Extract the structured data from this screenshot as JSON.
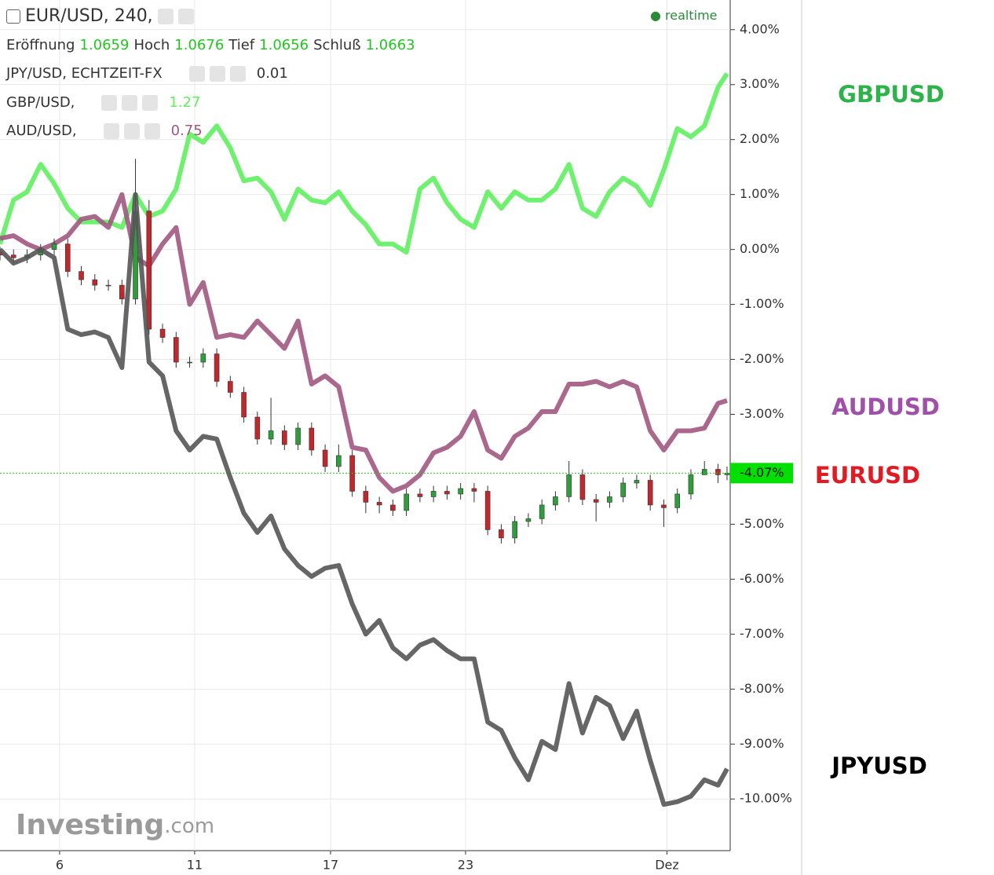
{
  "header": {
    "main": "EUR/USD, 240,",
    "open_label": "Eröffnung",
    "open": 1.0659,
    "high_label": "Hoch",
    "high": 1.0676,
    "low_label": "Tief",
    "low": 1.0656,
    "close_label": "Schluß",
    "close": 1.0663,
    "rows": [
      {
        "name": "JPY/USD, ECHTZEIT-FX",
        "value": 0.01,
        "color": "#333333"
      },
      {
        "name": "GBP/USD,",
        "value": 1.27,
        "color": "#5ef05e"
      },
      {
        "name": "AUD/USD,",
        "value": 0.75,
        "color": "#a0587f"
      }
    ],
    "status": "realtime",
    "watermark": "Investing",
    "watermark_suffix": ".com"
  },
  "chart_data": {
    "type": "line",
    "x": [
      0,
      3,
      6,
      9,
      12,
      15,
      18,
      21,
      24,
      27,
      30,
      33,
      36,
      39,
      42,
      45,
      48,
      51,
      54,
      57,
      60,
      63,
      66,
      69,
      72,
      75,
      78,
      81,
      84,
      87,
      90,
      93,
      96,
      99,
      102,
      105,
      108,
      111,
      114,
      117,
      120,
      123,
      126,
      129,
      132,
      135,
      138,
      141,
      144,
      147,
      150,
      153,
      156,
      159,
      161
    ],
    "xlim": [
      0,
      161.7
    ],
    "xticks": [
      {
        "value": 13.2,
        "label": "6"
      },
      {
        "value": 43.1,
        "label": "11"
      },
      {
        "value": 73.2,
        "label": "17"
      },
      {
        "value": 103.1,
        "label": "23"
      },
      {
        "value": 147.7,
        "label": "Dez"
      }
    ],
    "ylim": [
      -10.94,
      4.54
    ],
    "yticks": [
      {
        "value": -10,
        "label": "-10.00%"
      },
      {
        "value": -9,
        "label": "-9.00%"
      },
      {
        "value": -8,
        "label": "-8.00%"
      },
      {
        "value": -7,
        "label": "-7.00%"
      },
      {
        "value": -6,
        "label": "-6.00%"
      },
      {
        "value": -5,
        "label": "-5.00%"
      },
      {
        "value": -3,
        "label": "-3.00%"
      },
      {
        "value": -2,
        "label": "-2.00%"
      },
      {
        "value": -1,
        "label": "-1.00%"
      },
      {
        "value": 0,
        "label": "0.00%"
      },
      {
        "value": 1,
        "label": "1.00%"
      },
      {
        "value": 2,
        "label": "2.00%"
      },
      {
        "value": 3,
        "label": "3.00%"
      },
      {
        "value": 4,
        "label": "4.00%"
      }
    ],
    "grid": true,
    "series": [
      {
        "name": "GBPUSD",
        "type": "line",
        "color": "#5ef05e",
        "label_color": "#2eb34a",
        "values": [
          0.1,
          0.9,
          1.05,
          1.55,
          1.2,
          0.75,
          0.5,
          0.5,
          0.5,
          0.4,
          1.0,
          0.6,
          0.7,
          1.1,
          2.1,
          1.95,
          2.25,
          1.85,
          1.25,
          1.3,
          1.05,
          0.55,
          1.1,
          0.9,
          0.85,
          1.05,
          0.7,
          0.45,
          0.1,
          0.1,
          -0.05,
          1.1,
          1.3,
          0.85,
          0.55,
          0.4,
          1.05,
          0.75,
          1.05,
          0.9,
          0.9,
          1.1,
          1.55,
          0.75,
          0.6,
          1.05,
          1.3,
          1.15,
          0.8,
          1.45,
          2.2,
          2.05,
          2.25,
          2.95,
          3.2
        ]
      },
      {
        "name": "AUDUSD",
        "type": "line",
        "color": "#a0587f",
        "label_color": "#a050a8",
        "values": [
          0.2,
          0.25,
          0.1,
          0,
          0.1,
          0.25,
          0.55,
          0.6,
          0.4,
          1.0,
          -0.15,
          -0.3,
          0.1,
          0.4,
          -1.0,
          -0.6,
          -1.6,
          -1.55,
          -1.6,
          -1.3,
          -1.55,
          -1.8,
          -1.3,
          -2.45,
          -2.3,
          -2.5,
          -3.6,
          -3.65,
          -4.15,
          -4.4,
          -4.3,
          -4.1,
          -3.7,
          -3.6,
          -3.4,
          -2.95,
          -3.65,
          -3.8,
          -3.4,
          -3.25,
          -2.95,
          -2.95,
          -2.45,
          -2.45,
          -2.4,
          -2.5,
          -2.4,
          -2.5,
          -3.3,
          -3.65,
          -3.3,
          -3.3,
          -3.25,
          -2.8,
          -2.75
        ]
      },
      {
        "name": "EURUSD",
        "type": "candlestick",
        "color": "#e01b24",
        "up_color": "#2e9e3a",
        "down_color": "#c0282d",
        "last_label": "-4.07%",
        "open": [
          -0.05,
          -0.1,
          -0.15,
          -0.1,
          0,
          0.1,
          -0.4,
          -0.55,
          -0.65,
          -0.65,
          -0.9,
          0.7,
          -1.45,
          -1.6,
          -2.05,
          -2.05,
          -1.9,
          -2.4,
          -2.6,
          -3.05,
          -3.45,
          -3.3,
          -3.55,
          -3.25,
          -3.65,
          -3.95,
          -3.75,
          -4.4,
          -4.6,
          -4.65,
          -4.75,
          -4.45,
          -4.5,
          -4.4,
          -4.45,
          -4.35,
          -4.4,
          -5.1,
          -5.25,
          -4.95,
          -4.9,
          -4.65,
          -4.5,
          -4.1,
          -4.55,
          -4.6,
          -4.5,
          -4.25,
          -4.2,
          -4.65,
          -4.7,
          -4.45,
          -4.1,
          -4.0,
          -4.1
        ],
        "high": [
          0.05,
          0,
          0,
          0.1,
          0.2,
          0.2,
          -0.3,
          -0.45,
          -0.55,
          -0.55,
          1.65,
          0.9,
          -1.35,
          -1.5,
          -1.95,
          -1.8,
          -1.8,
          -2.3,
          -2.5,
          -2.95,
          -2.7,
          -3.2,
          -3.15,
          -3.15,
          -3.55,
          -3.55,
          -3.65,
          -4.3,
          -4.5,
          -4.55,
          -4.35,
          -4.35,
          -4.3,
          -4.3,
          -4.25,
          -4.25,
          -4.3,
          -5.0,
          -4.85,
          -4.8,
          -4.55,
          -4.4,
          -3.85,
          -4.0,
          -4.45,
          -4.4,
          -4.15,
          -4.1,
          -4.1,
          -4.55,
          -4.35,
          -4.0,
          -3.85,
          -3.9,
          -3.95
        ],
        "low": [
          -0.2,
          -0.25,
          -0.25,
          -0.2,
          -0.1,
          -0.5,
          -0.65,
          -0.75,
          -0.75,
          -1.0,
          -1.0,
          -1.55,
          -1.7,
          -2.15,
          -2.15,
          -2.15,
          -2.5,
          -2.7,
          -3.15,
          -3.55,
          -3.55,
          -3.65,
          -3.65,
          -3.75,
          -4.05,
          -4.05,
          -4.5,
          -4.8,
          -4.8,
          -4.85,
          -4.85,
          -4.6,
          -4.6,
          -4.55,
          -4.55,
          -4.6,
          -5.2,
          -5.35,
          -5.35,
          -5.05,
          -5.0,
          -4.75,
          -4.6,
          -4.65,
          -4.95,
          -4.7,
          -4.6,
          -4.35,
          -4.75,
          -5.05,
          -4.8,
          -4.55,
          -4.1,
          -4.25,
          -4.2
        ],
        "close": [
          -0.1,
          -0.15,
          -0.1,
          0,
          0.1,
          -0.4,
          -0.55,
          -0.65,
          -0.65,
          -0.9,
          0.7,
          -1.45,
          -1.6,
          -2.05,
          -2.05,
          -1.9,
          -2.4,
          -2.6,
          -3.05,
          -3.45,
          -3.3,
          -3.55,
          -3.25,
          -3.65,
          -3.95,
          -3.75,
          -4.4,
          -4.6,
          -4.65,
          -4.75,
          -4.45,
          -4.5,
          -4.4,
          -4.45,
          -4.35,
          -4.4,
          -5.1,
          -5.25,
          -4.95,
          -4.9,
          -4.65,
          -4.5,
          -4.1,
          -4.55,
          -4.6,
          -4.5,
          -4.25,
          -4.2,
          -4.65,
          -4.7,
          -4.45,
          -4.1,
          -4.0,
          -4.1,
          -4.07
        ]
      },
      {
        "name": "JPYUSD",
        "type": "line",
        "color": "#555555",
        "label_color": "#000000",
        "values": [
          0,
          -0.25,
          -0.15,
          0,
          -0.15,
          -1.45,
          -1.55,
          -1.5,
          -1.6,
          -2.15,
          1.0,
          -2.05,
          -2.3,
          -3.3,
          -3.65,
          -3.4,
          -3.45,
          -4.15,
          -4.8,
          -5.15,
          -4.85,
          -5.45,
          -5.75,
          -5.95,
          -5.8,
          -5.75,
          -6.45,
          -7.0,
          -6.75,
          -7.25,
          -7.45,
          -7.2,
          -7.1,
          -7.3,
          -7.45,
          -7.45,
          -8.6,
          -8.75,
          -9.25,
          -9.65,
          -8.95,
          -9.1,
          -7.9,
          -8.8,
          -8.15,
          -8.3,
          -8.9,
          -8.4,
          -9.3,
          -10.1,
          -10.05,
          -9.95,
          -9.65,
          -9.75,
          -9.45
        ]
      }
    ]
  }
}
